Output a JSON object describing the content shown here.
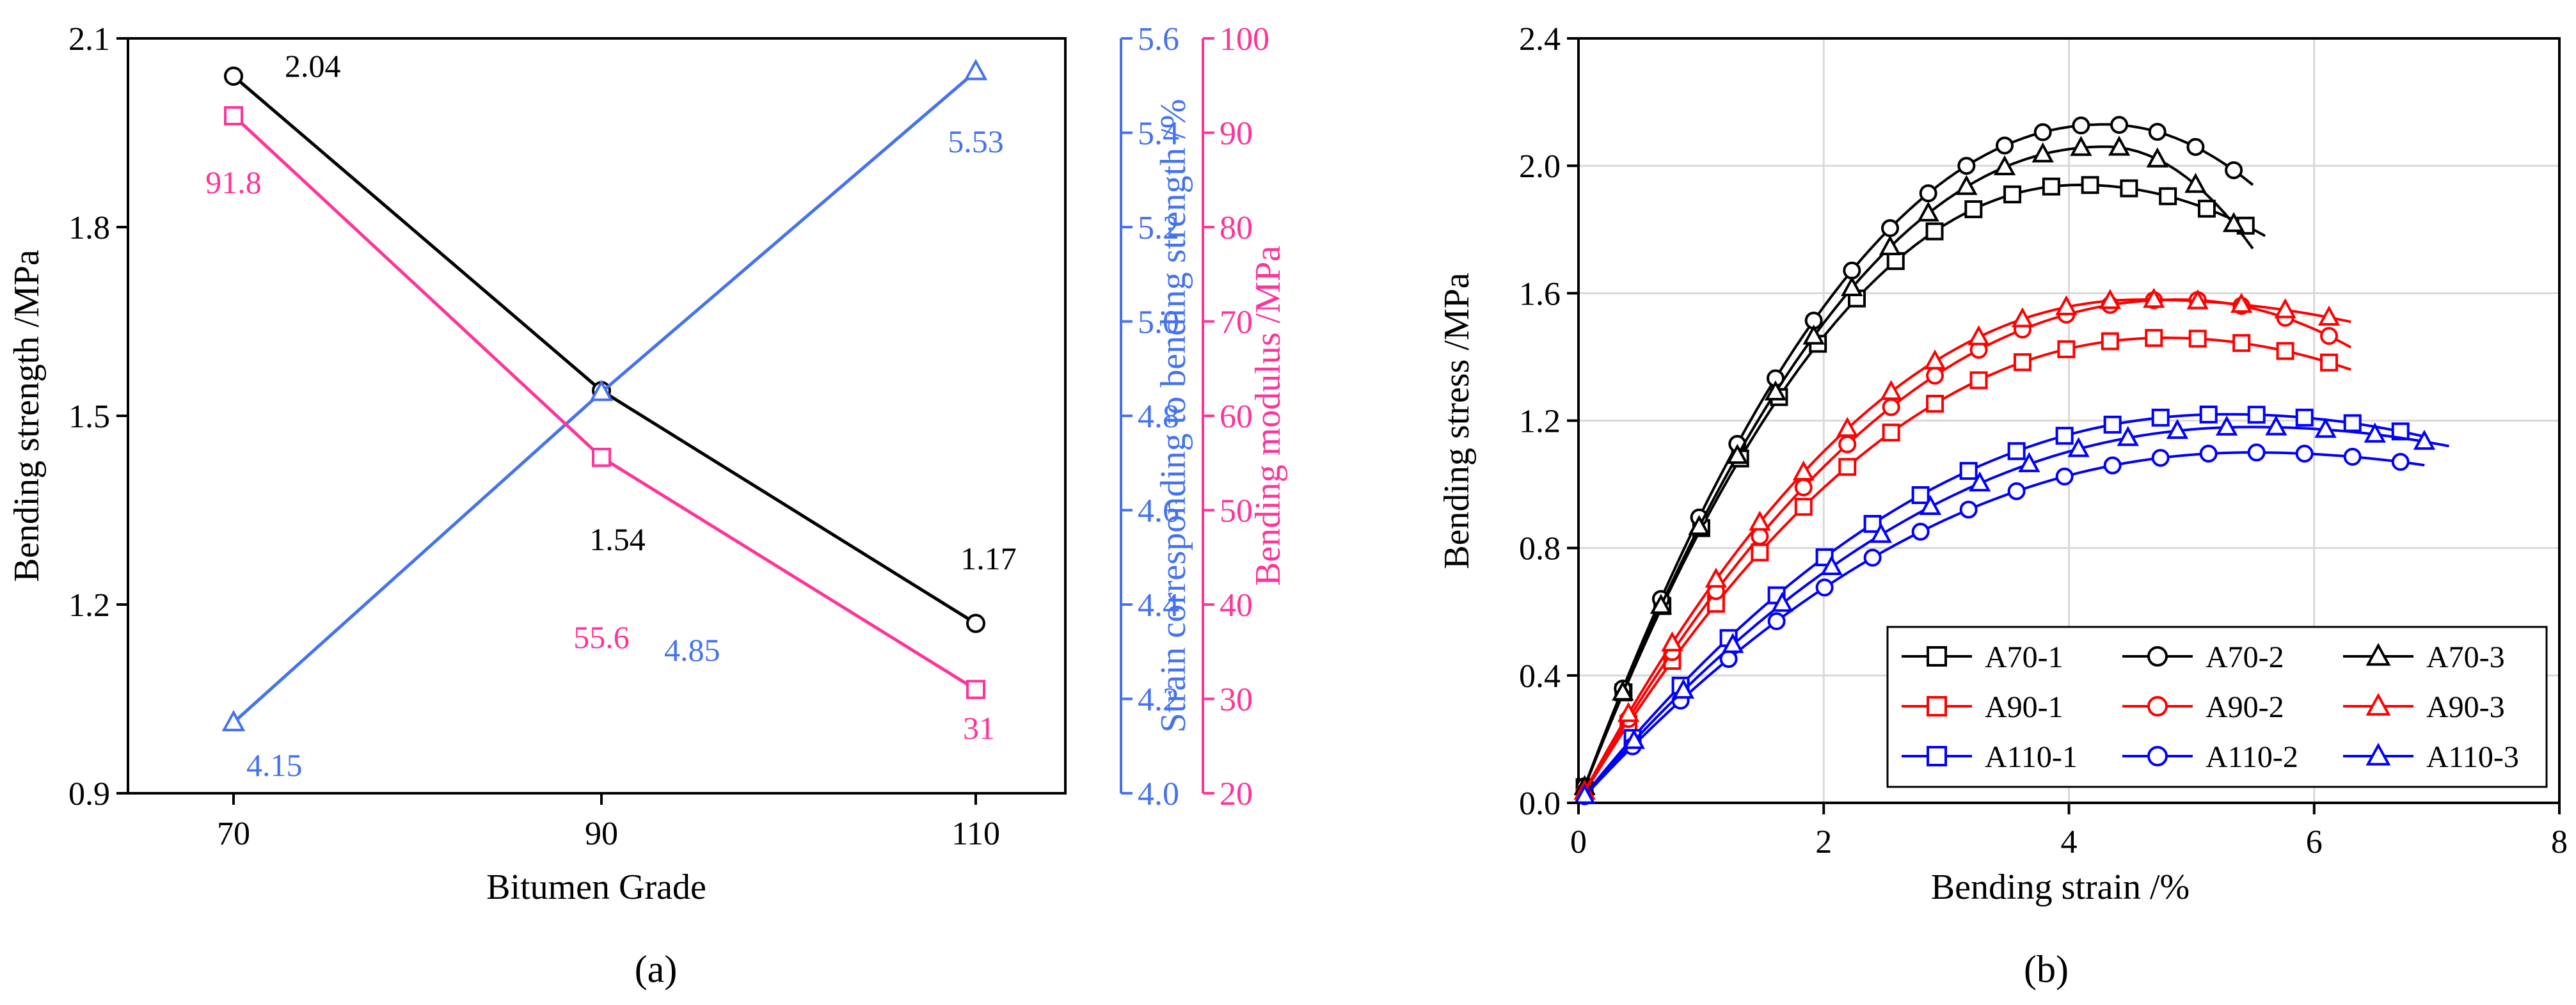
{
  "colors": {
    "black": "#000000",
    "blue": "#4472f0",
    "pink": "#ff3399",
    "red": "#ff0000",
    "dark_blue": "#0000ff",
    "grid": "#d9d9d9"
  },
  "chart_data": [
    {
      "id": "a",
      "panel_label": "(a)",
      "type": "line",
      "xlabel": "Bitumen Grade",
      "categories": [
        "70",
        "90",
        "110"
      ],
      "axes": [
        {
          "key": "strength",
          "label": "Bending strength /MPa",
          "color": "#000000",
          "ylim": [
            0.9,
            2.1
          ],
          "ticks": [
            "0.9",
            "1.2",
            "1.5",
            "1.8",
            "2.1"
          ]
        },
        {
          "key": "strain",
          "label": "Strain corresponding to bending strength /%",
          "color": "#4472f0",
          "ylim": [
            4.0,
            5.6
          ],
          "ticks": [
            "4.0",
            "4.2",
            "4.4",
            "4.6",
            "4.8",
            "5.0",
            "5.2",
            "5.4",
            "5.6"
          ]
        },
        {
          "key": "modulus",
          "label": "Bending modulus /MPa",
          "color": "#ff3399",
          "ylim": [
            20,
            100
          ],
          "ticks": [
            "20",
            "30",
            "40",
            "50",
            "60",
            "70",
            "80",
            "90",
            "100"
          ]
        }
      ],
      "series": [
        {
          "name": "Bending strength",
          "axis": "strength",
          "marker": "circle",
          "color": "#000000",
          "values": [
            2.04,
            1.54,
            1.17
          ],
          "labels": [
            "2.04",
            "1.54",
            "1.17"
          ]
        },
        {
          "name": "Strain corresponding to bending strength",
          "axis": "strain",
          "marker": "triangle",
          "color": "#4472f0",
          "values": [
            4.15,
            4.85,
            5.53
          ],
          "labels": [
            "4.15",
            "4.85",
            "5.53"
          ]
        },
        {
          "name": "Bending modulus",
          "axis": "modulus",
          "marker": "square",
          "color": "#ff3399",
          "values": [
            91.8,
            55.6,
            31
          ],
          "labels": [
            "91.8",
            "55.6",
            "31"
          ]
        }
      ]
    },
    {
      "id": "b",
      "panel_label": "(b)",
      "type": "line",
      "xlabel": "Bending strain /%",
      "ylabel": "Bending stress /MPa",
      "xlim": [
        0,
        8
      ],
      "ylim": [
        0,
        2.4
      ],
      "xticks": [
        "0",
        "2",
        "4",
        "6",
        "8"
      ],
      "yticks": [
        "0.0",
        "0.4",
        "0.8",
        "1.2",
        "1.6",
        "2.0",
        "2.4"
      ],
      "grid": true,
      "legend_position": "bottom-right",
      "series": [
        {
          "name": "A70-1",
          "color": "#000000",
          "marker": "square",
          "peak_x": 4.1,
          "peak_y": 1.94,
          "end_x": 5.6,
          "end_y": 1.78
        },
        {
          "name": "A90-1",
          "color": "#ff0000",
          "marker": "square",
          "peak_x": 4.8,
          "peak_y": 1.46,
          "end_x": 6.3,
          "end_y": 1.36
        },
        {
          "name": "A110-1",
          "color": "#0000ff",
          "marker": "square",
          "peak_x": 5.3,
          "peak_y": 1.22,
          "end_x": 6.9,
          "end_y": 1.15
        },
        {
          "name": "A70-2",
          "color": "#000000",
          "marker": "circle",
          "peak_x": 4.3,
          "peak_y": 2.13,
          "end_x": 5.5,
          "end_y": 1.94
        },
        {
          "name": "A90-2",
          "color": "#ff0000",
          "marker": "circle",
          "peak_x": 4.9,
          "peak_y": 1.58,
          "end_x": 6.3,
          "end_y": 1.43
        },
        {
          "name": "A110-2",
          "color": "#0000ff",
          "marker": "circle",
          "peak_x": 5.5,
          "peak_y": 1.1,
          "end_x": 6.9,
          "end_y": 1.06
        },
        {
          "name": "A70-3",
          "color": "#000000",
          "marker": "triangle",
          "peak_x": 4.3,
          "peak_y": 2.06,
          "end_x": 5.5,
          "end_y": 1.74
        },
        {
          "name": "A90-3",
          "color": "#ff0000",
          "marker": "triangle",
          "peak_x": 4.6,
          "peak_y": 1.58,
          "end_x": 6.3,
          "end_y": 1.51
        },
        {
          "name": "A110-3",
          "color": "#0000ff",
          "marker": "triangle",
          "peak_x": 5.5,
          "peak_y": 1.18,
          "end_x": 7.1,
          "end_y": 1.12
        }
      ]
    }
  ]
}
